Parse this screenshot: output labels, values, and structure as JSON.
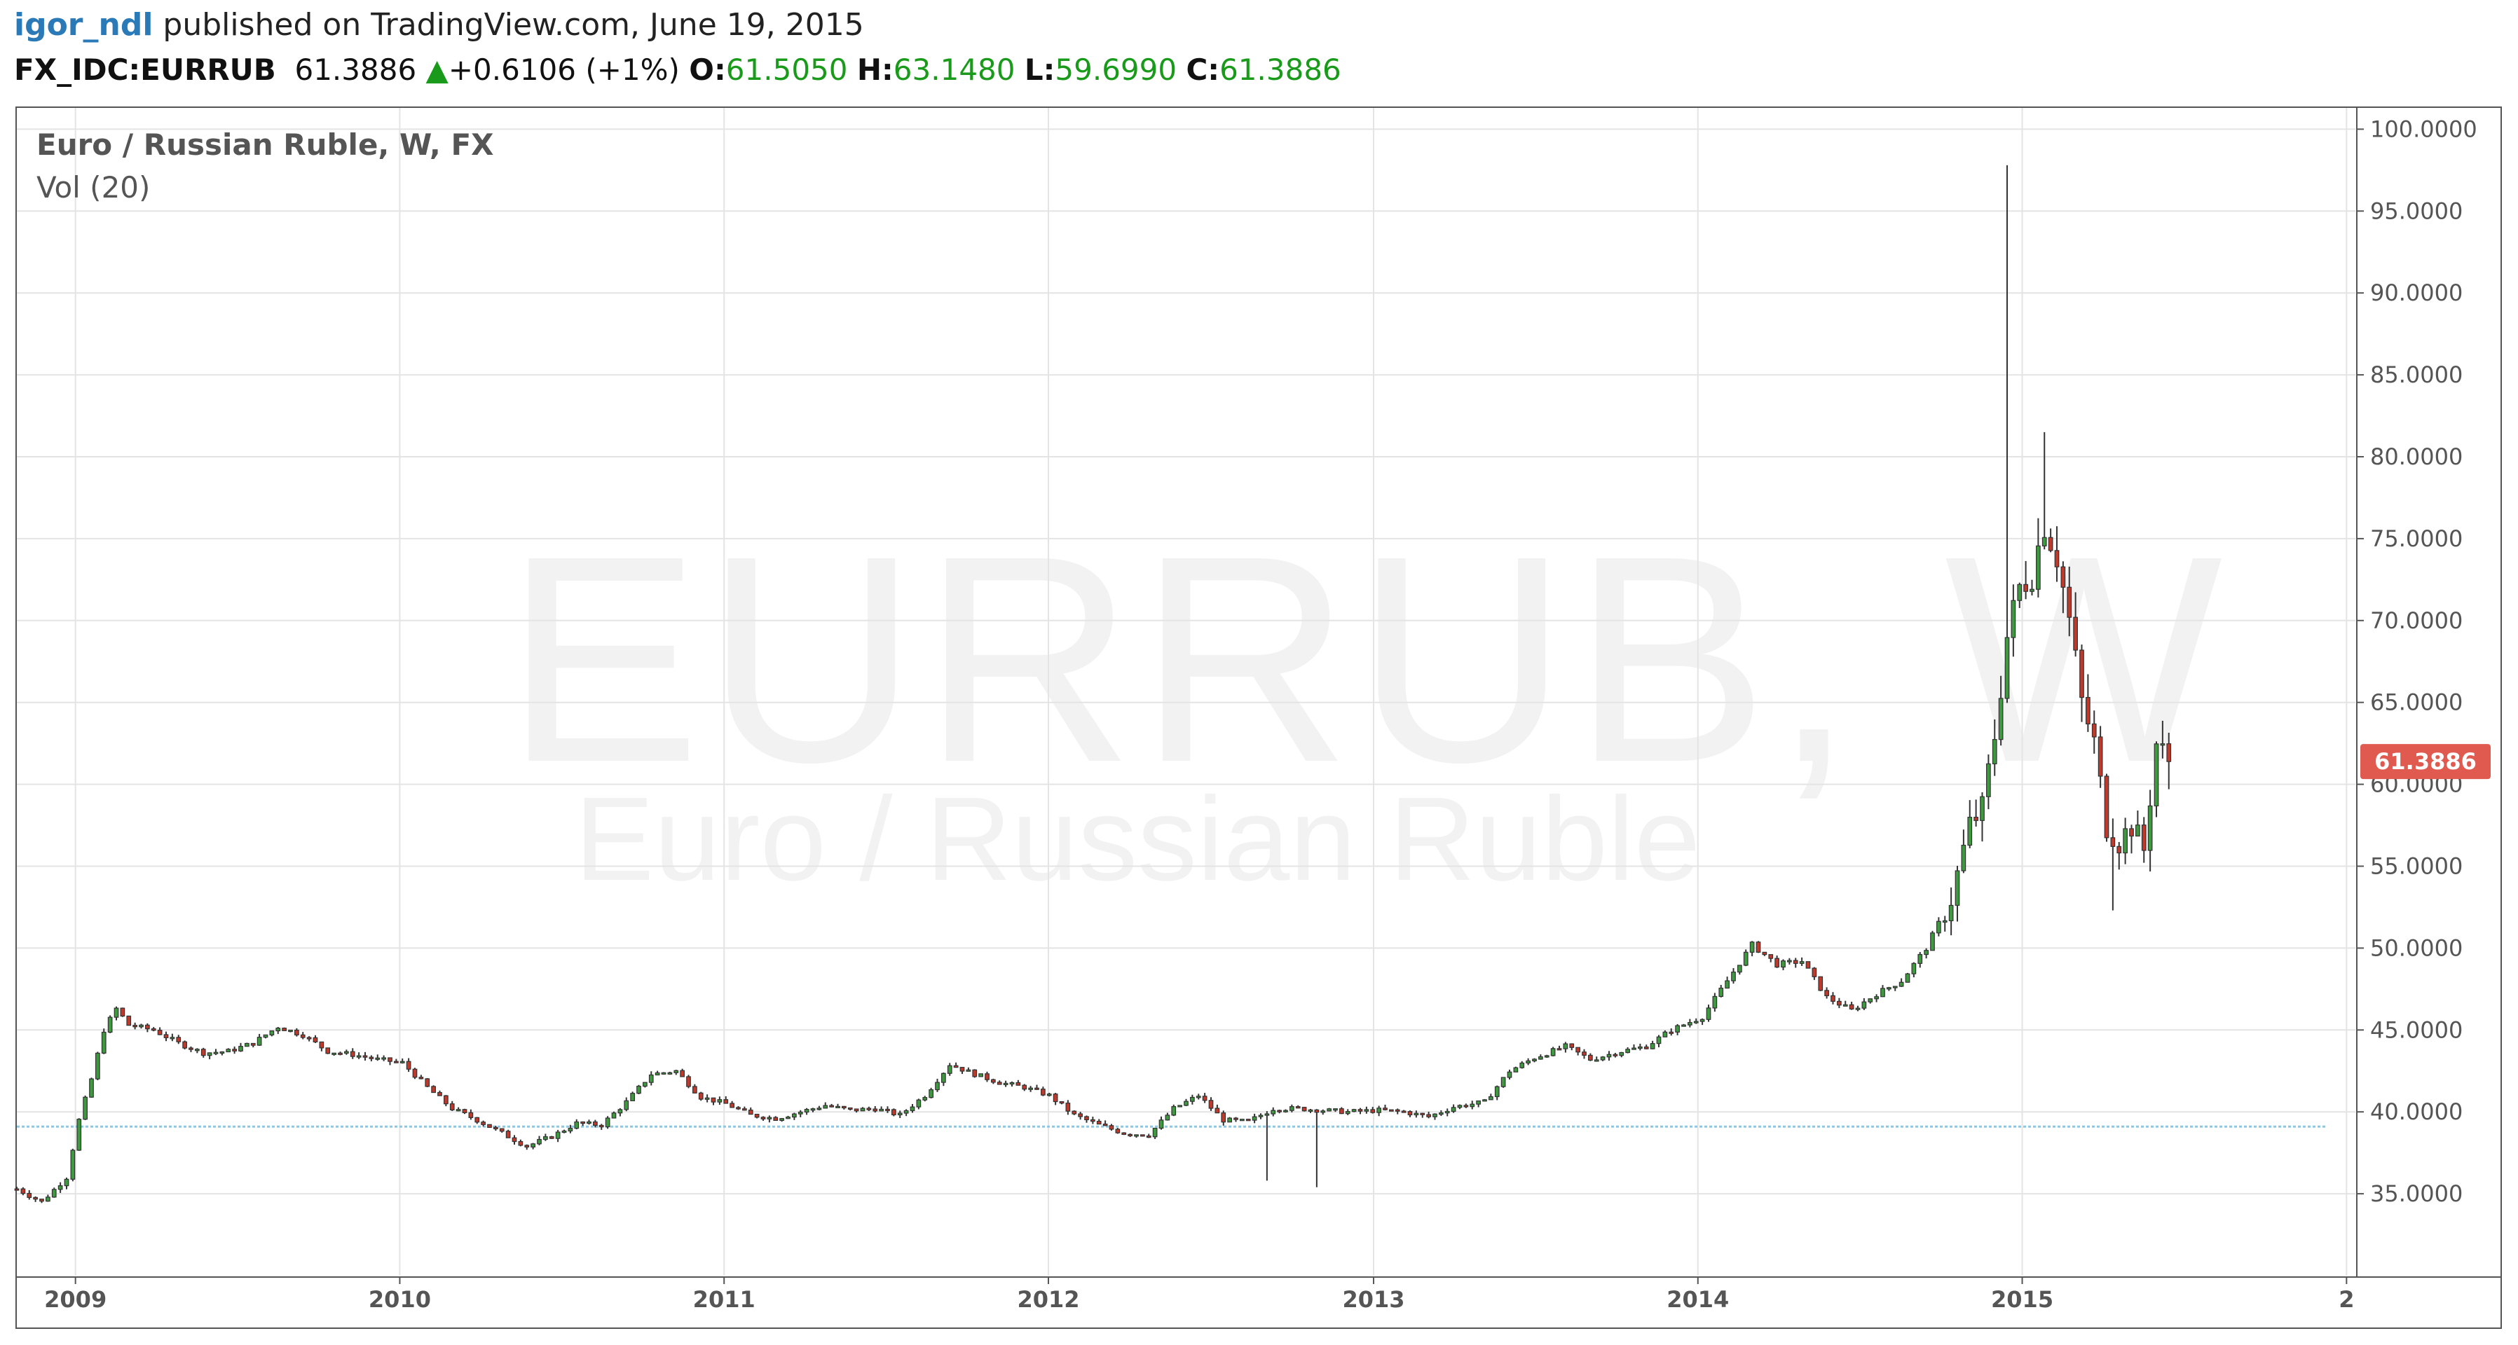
{
  "header": {
    "author": "igor_ndl",
    "published_text": "published on TradingView.com, June 19, 2015",
    "symbol": "FX_IDC:EURRUB",
    "last_price": "61.3886",
    "change": "+0.6106 (+1%)",
    "open_label": "O:",
    "open_value": "61.5050",
    "high_label": "H:",
    "high_value": "63.1480",
    "low_label": "L:",
    "low_value": "59.6990",
    "close_label": "C:",
    "close_value": "61.3886"
  },
  "legend": {
    "name": "Euro / Russian Ruble, W, FX",
    "indicator": "Vol (20)"
  },
  "watermark": {
    "symbol": "EURRUB, W",
    "description": "Euro / Russian Ruble"
  },
  "price_badge": "61.3886",
  "colors": {
    "up": "#3e9a3e",
    "down": "#c0392b",
    "wick": "#333333",
    "grid": "#e4e4e4",
    "reference_line": "#8ec8e6",
    "badge": "#e05a4f",
    "user_link": "#2a7ab8",
    "positive": "#1a9a1a"
  },
  "chart_data": {
    "type": "candlestick",
    "interval": "W",
    "ylim": [
      30,
      101.3
    ],
    "y_ticks": [
      "35.0000",
      "40.0000",
      "45.0000",
      "50.0000",
      "55.0000",
      "60.0000",
      "65.0000",
      "70.0000",
      "75.0000",
      "80.0000",
      "85.0000",
      "90.0000",
      "95.0000",
      "100.0000"
    ],
    "y_tick_values": [
      35,
      40,
      45,
      50,
      55,
      60,
      65,
      70,
      75,
      80,
      85,
      90,
      95,
      100
    ],
    "x_ticks": [
      "2009",
      "2010",
      "2011",
      "2012",
      "2013",
      "2014",
      "2015",
      "2"
    ],
    "x_tick_dates": [
      "2009-01-01",
      "2010-01-01",
      "2011-01-01",
      "2012-01-01",
      "2013-01-01",
      "2014-01-01",
      "2015-01-01",
      "2016-01-01"
    ],
    "x_range": [
      "2008-10-27",
      "2016-01-11"
    ],
    "reference_level": 39.1,
    "grid": true,
    "close_series": [
      [
        "2008-10-27",
        35.3
      ],
      [
        "2008-11-24",
        34.5
      ],
      [
        "2008-12-22",
        36.0
      ],
      [
        "2009-01-05",
        39.5
      ],
      [
        "2009-01-19",
        42.0
      ],
      [
        "2009-02-02",
        45.0
      ],
      [
        "2009-02-16",
        46.3
      ],
      [
        "2009-03-02",
        45.3
      ],
      [
        "2009-03-30",
        45.0
      ],
      [
        "2009-04-27",
        44.2
      ],
      [
        "2009-05-25",
        43.6
      ],
      [
        "2009-06-22",
        43.7
      ],
      [
        "2009-07-20",
        44.2
      ],
      [
        "2009-08-17",
        45.2
      ],
      [
        "2009-09-14",
        44.7
      ],
      [
        "2009-10-12",
        43.7
      ],
      [
        "2009-11-09",
        43.5
      ],
      [
        "2009-12-07",
        43.2
      ],
      [
        "2010-01-04",
        43.0
      ],
      [
        "2010-02-01",
        41.5
      ],
      [
        "2010-03-01",
        40.2
      ],
      [
        "2010-03-29",
        39.5
      ],
      [
        "2010-04-26",
        38.7
      ],
      [
        "2010-05-24",
        37.9
      ],
      [
        "2010-06-21",
        38.5
      ],
      [
        "2010-07-19",
        39.3
      ],
      [
        "2010-08-16",
        39.2
      ],
      [
        "2010-09-13",
        40.6
      ],
      [
        "2010-10-11",
        42.3
      ],
      [
        "2010-11-08",
        42.5
      ],
      [
        "2010-12-06",
        40.9
      ],
      [
        "2011-01-03",
        40.5
      ],
      [
        "2011-01-31",
        39.8
      ],
      [
        "2011-02-28",
        39.6
      ],
      [
        "2011-03-28",
        40.0
      ],
      [
        "2011-04-25",
        40.4
      ],
      [
        "2011-05-23",
        40.1
      ],
      [
        "2011-06-20",
        40.2
      ],
      [
        "2011-07-18",
        39.8
      ],
      [
        "2011-08-15",
        41.0
      ],
      [
        "2011-09-12",
        42.9
      ],
      [
        "2011-10-10",
        42.3
      ],
      [
        "2011-11-07",
        41.8
      ],
      [
        "2011-12-05",
        41.5
      ],
      [
        "2012-01-02",
        41.0
      ],
      [
        "2012-01-30",
        39.8
      ],
      [
        "2012-02-27",
        39.2
      ],
      [
        "2012-03-26",
        38.7
      ],
      [
        "2012-04-23",
        38.6
      ],
      [
        "2012-05-21",
        40.2
      ],
      [
        "2012-06-18",
        41.0
      ],
      [
        "2012-07-16",
        39.5
      ],
      [
        "2012-08-13",
        39.4
      ],
      [
        "2012-09-10",
        40.2
      ],
      [
        "2012-10-08",
        40.2
      ],
      [
        "2012-11-05",
        40.1
      ],
      [
        "2012-12-03",
        40.0
      ],
      [
        "2013-01-07",
        40.1
      ],
      [
        "2013-02-04",
        40.0
      ],
      [
        "2013-03-04",
        39.7
      ],
      [
        "2013-04-01",
        40.3
      ],
      [
        "2013-05-06",
        40.6
      ],
      [
        "2013-06-03",
        42.5
      ],
      [
        "2013-07-01",
        43.3
      ],
      [
        "2013-08-05",
        44.0
      ],
      [
        "2013-09-02",
        43.2
      ],
      [
        "2013-10-07",
        43.7
      ],
      [
        "2013-11-04",
        44.0
      ],
      [
        "2013-12-02",
        45.0
      ],
      [
        "2014-01-06",
        45.8
      ],
      [
        "2014-02-03",
        48.0
      ],
      [
        "2014-03-03",
        50.2
      ],
      [
        "2014-03-31",
        49.0
      ],
      [
        "2014-04-28",
        49.2
      ],
      [
        "2014-05-26",
        47.0
      ],
      [
        "2014-06-23",
        46.2
      ],
      [
        "2014-07-21",
        47.2
      ],
      [
        "2014-08-18",
        48.0
      ],
      [
        "2014-09-15",
        50.0
      ],
      [
        "2014-10-13",
        53.0
      ],
      [
        "2014-11-03",
        57.5
      ],
      [
        "2014-11-17",
        58.5
      ],
      [
        "2014-12-01",
        63.0
      ],
      [
        "2014-12-15",
        69.0
      ],
      [
        "2014-12-29",
        72.0
      ],
      [
        "2015-01-12",
        73.0
      ],
      [
        "2015-01-26",
        76.0
      ],
      [
        "2015-02-09",
        74.0
      ],
      [
        "2015-02-23",
        70.0
      ],
      [
        "2015-03-09",
        65.0
      ],
      [
        "2015-03-23",
        62.5
      ],
      [
        "2015-04-06",
        57.5
      ],
      [
        "2015-04-20",
        56.5
      ],
      [
        "2015-05-04",
        57.5
      ],
      [
        "2015-05-18",
        56.0
      ],
      [
        "2015-06-01",
        62.5
      ],
      [
        "2015-06-15",
        61.3886
      ]
    ]
  }
}
